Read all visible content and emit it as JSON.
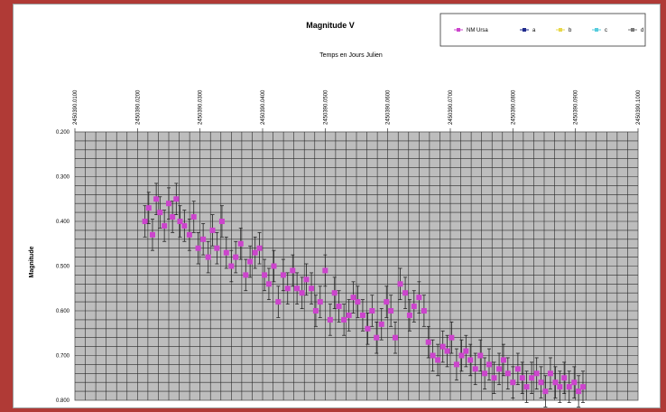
{
  "chart_data": {
    "type": "scatter",
    "title": "Magnitude V",
    "xlabel": "Temps en Jours Julien",
    "ylabel": "Magnitude",
    "x_ticks": [
      "2450390.0100",
      "2450390.0200",
      "2450390.0300",
      "2450390.0400",
      "2450390.0500",
      "2450390.0600",
      "2450390.0700",
      "2450390.0800",
      "2450390.0900",
      "2450390.1000"
    ],
    "y_ticks": [
      "0.200",
      "0.300",
      "0.400",
      "0.500",
      "0.600",
      "0.700",
      "0.800"
    ],
    "xlim": [
      2450390.01,
      2450390.1
    ],
    "ylim": [
      0.2,
      0.8
    ],
    "y_reversed": true,
    "grid": true,
    "legend_position": "top-right",
    "legend": [
      {
        "label": "NM Ursa",
        "color": "#cc44cc"
      },
      {
        "label": "a",
        "color": "#1f2a8c"
      },
      {
        "label": "b",
        "color": "#e8d84a"
      },
      {
        "label": "c",
        "color": "#55ccdd"
      },
      {
        "label": "d",
        "color": "#777777"
      }
    ],
    "series": [
      {
        "name": "NM Ursa",
        "color": "#cc44cc",
        "error": 0.035,
        "x": [
          2450390.0212,
          2450390.0218,
          2450390.0224,
          2450390.023,
          2450390.0236,
          2450390.0243,
          2450390.025,
          2450390.0256,
          2450390.0262,
          2450390.0268,
          2450390.0275,
          2450390.0283,
          2450390.029,
          2450390.0297,
          2450390.0305,
          2450390.0313,
          2450390.032,
          2450390.0327,
          2450390.0335,
          2450390.0342,
          2450390.035,
          2450390.0357,
          2450390.0365,
          2450390.0373,
          2450390.038,
          2450390.0388,
          2450390.0395,
          2450390.0403,
          2450390.041,
          2450390.0418,
          2450390.0425,
          2450390.0433,
          2450390.044,
          2450390.0448,
          2450390.0455,
          2450390.0463,
          2450390.047,
          2450390.0478,
          2450390.0485,
          2450390.0492,
          2450390.05,
          2450390.0508,
          2450390.0515,
          2450390.0522,
          2450390.053,
          2450390.0538,
          2450390.0545,
          2450390.0552,
          2450390.056,
          2450390.0568,
          2450390.0575,
          2450390.0582,
          2450390.059,
          2450390.0598,
          2450390.0605,
          2450390.0612,
          2450390.062,
          2450390.0628,
          2450390.0635,
          2450390.0642,
          2450390.065,
          2450390.0658,
          2450390.0665,
          2450390.0672,
          2450390.068,
          2450390.0688,
          2450390.0695,
          2450390.0702,
          2450390.071,
          2450390.0718,
          2450390.0725,
          2450390.0732,
          2450390.074,
          2450390.0748,
          2450390.0755,
          2450390.0762,
          2450390.077,
          2450390.0778,
          2450390.0785,
          2450390.0792,
          2450390.08,
          2450390.0808,
          2450390.0815,
          2450390.0822,
          2450390.083,
          2450390.0838,
          2450390.0845,
          2450390.0852,
          2450390.086,
          2450390.0868,
          2450390.0875,
          2450390.0882,
          2450390.089,
          2450390.0898,
          2450390.0905,
          2450390.0912
        ],
        "y": [
          0.4,
          0.37,
          0.43,
          0.35,
          0.38,
          0.41,
          0.36,
          0.39,
          0.35,
          0.4,
          0.41,
          0.43,
          0.39,
          0.46,
          0.44,
          0.48,
          0.42,
          0.46,
          0.4,
          0.47,
          0.5,
          0.48,
          0.45,
          0.52,
          0.49,
          0.47,
          0.46,
          0.52,
          0.54,
          0.5,
          0.58,
          0.52,
          0.55,
          0.51,
          0.55,
          0.56,
          0.53,
          0.55,
          0.6,
          0.58,
          0.51,
          0.62,
          0.56,
          0.59,
          0.62,
          0.61,
          0.57,
          0.58,
          0.61,
          0.64,
          0.6,
          0.66,
          0.63,
          0.58,
          0.6,
          0.66,
          0.54,
          0.56,
          0.61,
          0.59,
          0.57,
          0.6,
          0.67,
          0.7,
          0.71,
          0.68,
          0.69,
          0.66,
          0.72,
          0.7,
          0.69,
          0.71,
          0.73,
          0.7,
          0.74,
          0.72,
          0.75,
          0.73,
          0.71,
          0.74,
          0.76,
          0.73,
          0.75,
          0.77,
          0.75,
          0.74,
          0.76,
          0.78,
          0.74,
          0.76,
          0.77,
          0.75,
          0.77,
          0.76,
          0.78,
          0.77
        ]
      }
    ]
  }
}
